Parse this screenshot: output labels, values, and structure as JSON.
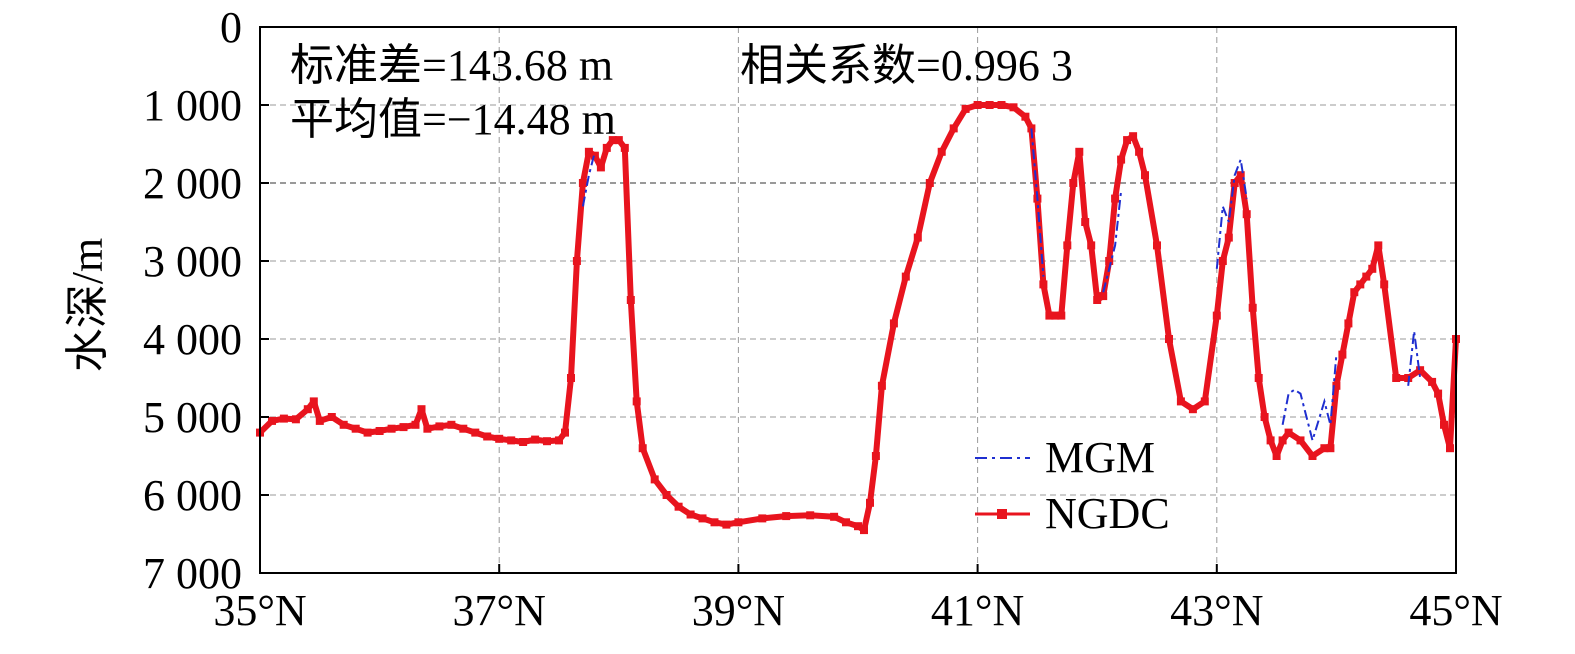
{
  "chart_data": {
    "type": "line",
    "title": "",
    "xlabel": "",
    "ylabel": "水深/m",
    "xlim": [
      35,
      45
    ],
    "ylim": [
      0,
      7000
    ],
    "y_inverted": true,
    "grid": true,
    "x_ticks": [
      35,
      37,
      39,
      41,
      43,
      45
    ],
    "x_tick_labels": [
      "35°N",
      "37°N",
      "39°N",
      "41°N",
      "43°N",
      "45°N"
    ],
    "y_ticks": [
      0,
      1000,
      2000,
      3000,
      4000,
      5000,
      6000,
      7000
    ],
    "y_tick_labels": [
      "0",
      "1 000",
      "2 000",
      "3 000",
      "4 000",
      "5 000",
      "6 000",
      "7 000"
    ],
    "annotations": {
      "std": "标准差=143.68 m",
      "corr": "相关系数=0.996 3",
      "mean": "平均值=−14.48 m"
    },
    "legend_position": "bottom-right",
    "legend": [
      {
        "name": "MGM",
        "color": "#1f2fd0",
        "style": "dash-dot"
      },
      {
        "name": "NGDC",
        "color": "#e8141e",
        "style": "solid-square-markers"
      }
    ],
    "series": [
      {
        "name": "NGDC",
        "color": "#e8141e",
        "x": [
          35.0,
          35.1,
          35.2,
          35.3,
          35.4,
          35.45,
          35.5,
          35.6,
          35.7,
          35.8,
          35.9,
          36.0,
          36.1,
          36.2,
          36.3,
          36.35,
          36.4,
          36.5,
          36.6,
          36.7,
          36.8,
          36.9,
          37.0,
          37.1,
          37.2,
          37.3,
          37.4,
          37.5,
          37.55,
          37.6,
          37.65,
          37.7,
          37.75,
          37.8,
          37.85,
          37.9,
          37.95,
          38.0,
          38.05,
          38.1,
          38.15,
          38.2,
          38.3,
          38.4,
          38.5,
          38.6,
          38.7,
          38.8,
          38.9,
          39.0,
          39.2,
          39.4,
          39.6,
          39.8,
          39.9,
          40.0,
          40.05,
          40.1,
          40.15,
          40.2,
          40.3,
          40.4,
          40.5,
          40.6,
          40.7,
          40.8,
          40.9,
          41.0,
          41.1,
          41.2,
          41.3,
          41.4,
          41.45,
          41.5,
          41.55,
          41.6,
          41.65,
          41.7,
          41.75,
          41.8,
          41.85,
          41.9,
          41.95,
          42.0,
          42.05,
          42.1,
          42.15,
          42.2,
          42.25,
          42.3,
          42.35,
          42.4,
          42.5,
          42.6,
          42.7,
          42.8,
          42.9,
          43.0,
          43.05,
          43.1,
          43.15,
          43.2,
          43.25,
          43.3,
          43.35,
          43.4,
          43.45,
          43.5,
          43.55,
          43.6,
          43.7,
          43.8,
          43.9,
          43.95,
          44.0,
          44.05,
          44.1,
          44.15,
          44.2,
          44.25,
          44.3,
          44.35,
          44.4,
          44.5,
          44.6,
          44.7,
          44.8,
          44.85,
          44.9,
          44.95,
          45.0
        ],
        "y": [
          5200,
          5050,
          5020,
          5030,
          4900,
          4800,
          5050,
          5000,
          5100,
          5150,
          5200,
          5180,
          5150,
          5130,
          5100,
          4900,
          5150,
          5120,
          5100,
          5150,
          5200,
          5250,
          5280,
          5300,
          5320,
          5290,
          5310,
          5300,
          5200,
          4500,
          3000,
          2000,
          1600,
          1650,
          1800,
          1550,
          1450,
          1450,
          1550,
          3500,
          4800,
          5400,
          5800,
          6000,
          6150,
          6250,
          6300,
          6350,
          6380,
          6350,
          6300,
          6270,
          6260,
          6280,
          6350,
          6400,
          6450,
          6100,
          5500,
          4600,
          3800,
          3200,
          2700,
          2000,
          1600,
          1300,
          1050,
          1000,
          1000,
          1000,
          1030,
          1150,
          1300,
          2200,
          3300,
          3700,
          3700,
          3700,
          2800,
          2000,
          1600,
          2500,
          2800,
          3500,
          3450,
          3000,
          2200,
          1700,
          1450,
          1400,
          1600,
          1900,
          2800,
          4000,
          4800,
          4900,
          4800,
          3700,
          3000,
          2700,
          2000,
          1900,
          2400,
          3600,
          4500,
          5000,
          5300,
          5500,
          5300,
          5200,
          5300,
          5500,
          5400,
          5400,
          4600,
          4200,
          3800,
          3400,
          3300,
          3200,
          3100,
          2800,
          3300,
          4500,
          4500,
          4400,
          4550,
          4700,
          5100,
          5400,
          4000
        ]
      },
      {
        "name": "MGM",
        "color": "#1f2fd0",
        "x": [
          37.7,
          37.75,
          37.8,
          41.45,
          41.5,
          41.55,
          42.05,
          42.1,
          42.15,
          42.2,
          43.0,
          43.05,
          43.1,
          43.15,
          43.2,
          43.25,
          43.55,
          43.6,
          43.65,
          43.7,
          43.75,
          43.8,
          43.9,
          43.95,
          44.0,
          44.6,
          44.65,
          44.7
        ],
        "y": [
          2300,
          1900,
          1600,
          1300,
          2200,
          3200,
          3400,
          3100,
          2800,
          2100,
          3100,
          2300,
          2500,
          1900,
          1700,
          2200,
          5100,
          4700,
          4650,
          4700,
          5000,
          5300,
          4800,
          5100,
          4200,
          4600,
          3900,
          4500
        ]
      }
    ]
  }
}
